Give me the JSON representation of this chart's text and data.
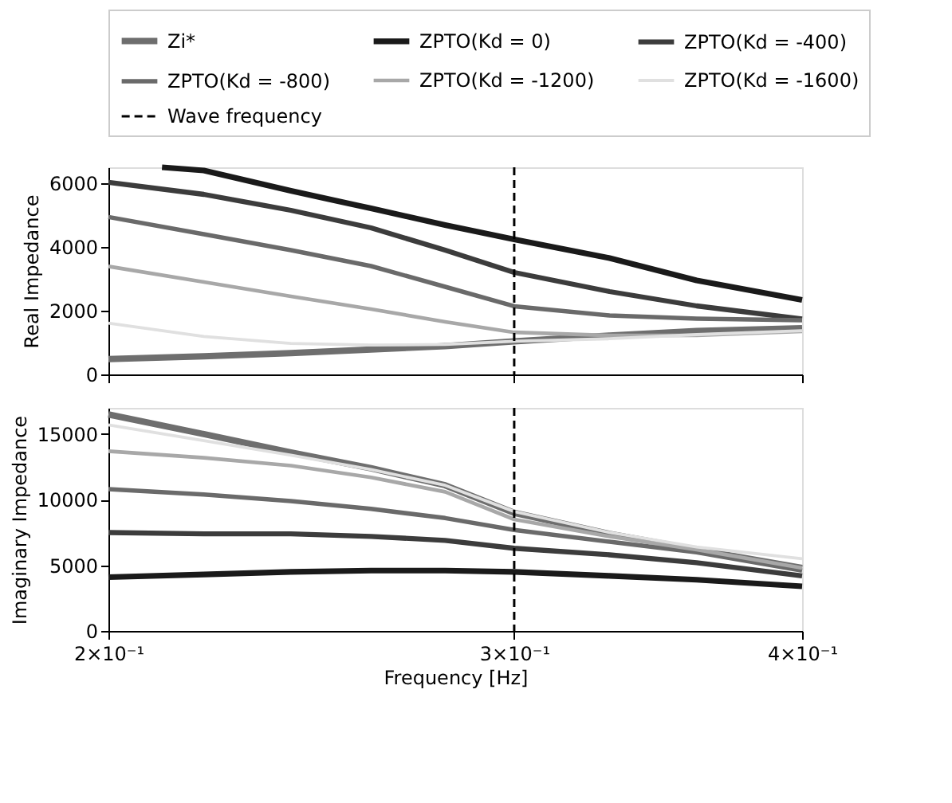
{
  "chart_data": [
    {
      "type": "line",
      "ylabel": "Real Impedance",
      "legend": "top",
      "grid": false,
      "tick_labels": "y",
      "line_style": "solid",
      "marker": "none",
      "x": [
        0.2,
        0.22,
        0.24,
        0.26,
        0.28,
        0.3,
        0.33,
        0.36,
        0.4
      ],
      "xlim": [
        0.2,
        0.4
      ],
      "xticks": [
        {
          "value": 0.2,
          "label": null
        },
        {
          "value": 0.3,
          "label": null
        },
        {
          "value": 0.4,
          "label": null
        }
      ],
      "log": "x",
      "ylim": [
        0,
        6500
      ],
      "yticks": [
        0,
        2000,
        4000,
        6000
      ],
      "series": [
        {
          "name": "Zi*",
          "color": "#6e6e6e",
          "values": [
            480,
            570,
            670,
            780,
            890,
            1040,
            1220,
            1360,
            1450
          ]
        },
        {
          "name": "ZPTO(Kd = 0)",
          "color": "#1a1a1a",
          "x": [
            0.211,
            0.22,
            0.24,
            0.26,
            0.28,
            0.3,
            0.33,
            0.36,
            0.4
          ],
          "values": [
            6500,
            6400,
            5760,
            5210,
            4690,
            4240,
            3650,
            2950,
            2340
          ]
        },
        {
          "name": "ZPTO(Kd = -400)",
          "color": "#3c3c3c",
          "values": [
            6030,
            5650,
            5150,
            4600,
            3900,
            3200,
            2600,
            2150,
            1740
          ]
        },
        {
          "name": "ZPTO(Kd = -800)",
          "color": "#6a6a6a",
          "values": [
            4940,
            4400,
            3900,
            3400,
            2750,
            2140,
            1850,
            1750,
            1700
          ]
        },
        {
          "name": "ZPTO(Kd = -1200)",
          "color": "#a8a8a8",
          "values": [
            3390,
            2900,
            2450,
            2050,
            1650,
            1320,
            1220,
            1230,
            1350
          ]
        },
        {
          "name": "ZPTO(Kd = -1600)",
          "color": "#e0e0e0",
          "values": [
            1610,
            1190,
            970,
            920,
            940,
            1040,
            1120,
            1250,
            1370
          ]
        }
      ],
      "ref_lines": [
        {
          "axis": "x",
          "value": 0.3,
          "label": "Wave frequency",
          "color": "#000000",
          "line_style": "dashed"
        }
      ]
    },
    {
      "type": "line",
      "ylabel": "Imaginary Impedance",
      "xlabel": "Frequency [Hz]",
      "legend": false,
      "grid": false,
      "line_style": "solid",
      "marker": "none",
      "x": [
        0.2,
        0.22,
        0.24,
        0.26,
        0.28,
        0.3,
        0.33,
        0.36,
        0.4
      ],
      "xlim": [
        0.2,
        0.4
      ],
      "xticks": [
        {
          "value": 0.2,
          "label": "2×10⁻¹"
        },
        {
          "value": 0.3,
          "label": "3×10⁻¹"
        },
        {
          "value": 0.4,
          "label": "4×10⁻¹"
        }
      ],
      "log": "x",
      "ylim": [
        0,
        17000
      ],
      "yticks": [
        0,
        5000,
        10000,
        15000
      ],
      "series": [
        {
          "color": "#6e6e6e",
          "values": [
            16500,
            15000,
            13600,
            12400,
            11100,
            9000,
            7400,
            6200,
            4800
          ]
        },
        {
          "color": "#1a1a1a",
          "values": [
            4100,
            4300,
            4500,
            4600,
            4600,
            4500,
            4200,
            3900,
            3400
          ]
        },
        {
          "color": "#3c3c3c",
          "values": [
            7500,
            7400,
            7400,
            7200,
            6900,
            6300,
            5800,
            5200,
            4200
          ]
        },
        {
          "color": "#6a6a6a",
          "values": [
            10800,
            10400,
            9900,
            9300,
            8600,
            7700,
            6800,
            6000,
            4600
          ]
        },
        {
          "color": "#a8a8a8",
          "values": [
            13700,
            13200,
            12600,
            11700,
            10600,
            8500,
            7200,
            6200,
            4800
          ]
        },
        {
          "color": "#e0e0e0",
          "values": [
            15700,
            14500,
            13400,
            12300,
            11100,
            9100,
            7500,
            6400,
            5500
          ]
        }
      ],
      "ref_lines": [
        {
          "axis": "x",
          "value": 0.3,
          "color": "#000000",
          "line_style": "dashed"
        }
      ]
    }
  ]
}
